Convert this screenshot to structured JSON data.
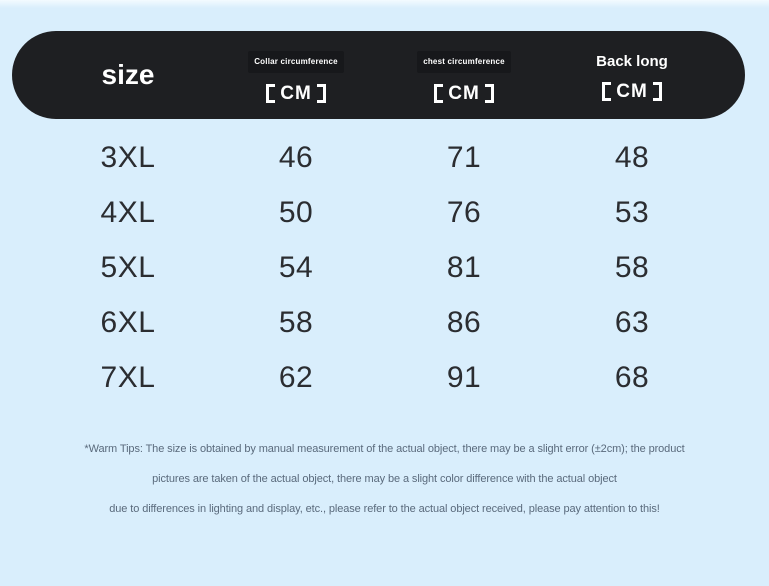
{
  "colors": {
    "background": "#d9eefc",
    "header_bar": "#1e1f22",
    "header_text": "#ffffff",
    "body_text": "#2b2d31",
    "tips_text": "#5a6a7c"
  },
  "chart_data": {
    "type": "table",
    "corner_label": "size",
    "columns": [
      {
        "title": "Collar circumference",
        "unit": "【CM】"
      },
      {
        "title": "chest circumference",
        "unit": "【CM】"
      },
      {
        "title": "Back long",
        "unit": "【CM】"
      }
    ],
    "rows": [
      [
        "3XL",
        "46",
        "71",
        "48"
      ],
      [
        "4XL",
        "50",
        "76",
        "53"
      ],
      [
        "5XL",
        "54",
        "81",
        "58"
      ],
      [
        "6XL",
        "58",
        "86",
        "63"
      ],
      [
        "7XL",
        "62",
        "91",
        "68"
      ]
    ]
  },
  "warm_tips": {
    "lines": [
      "*Warm Tips: The size is obtained by manual measurement of the actual object, there may be a slight error (±2cm); the product",
      "pictures are taken of the actual object, there may be a slight color difference with the actual object",
      "due to differences in lighting and display, etc., please refer to the actual object received, please pay attention to this!"
    ]
  }
}
